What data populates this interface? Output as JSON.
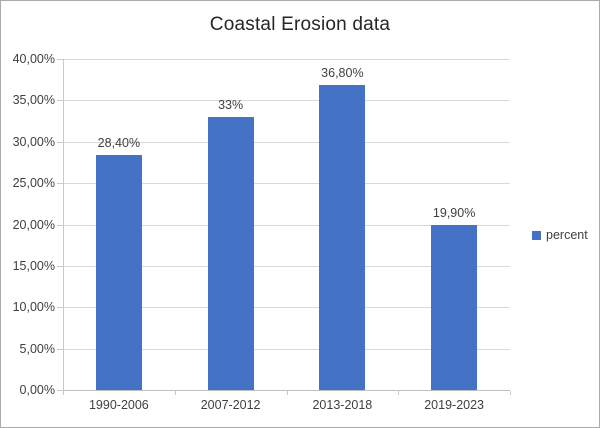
{
  "chart_data": {
    "type": "bar",
    "title": "Coastal Erosion data",
    "categories": [
      "1990-2006",
      "2007-2012",
      "2013-2018",
      "2019-2023"
    ],
    "series": [
      {
        "name": "percent",
        "values": [
          28.4,
          33.0,
          36.8,
          19.9
        ]
      }
    ],
    "data_labels": [
      "28,40%",
      "33%",
      "36,80%",
      "19,90%"
    ],
    "y_tick_labels": [
      "0,00%",
      "5,00%",
      "10,00%",
      "15,00%",
      "20,00%",
      "25,00%",
      "30,00%",
      "35,00%",
      "40,00%"
    ],
    "y_tick_values": [
      0,
      5,
      10,
      15,
      20,
      25,
      30,
      35,
      40
    ],
    "ylim": [
      0,
      40
    ],
    "xlabel": "",
    "ylabel": "",
    "grid": true,
    "legend": {
      "position": "right",
      "label": "percent"
    },
    "colors": {
      "bar": "#4472C4",
      "gridline": "#d9d9d9",
      "axis_line": "#bfbfbf",
      "tick_text": "#404040",
      "title_text": "#262626",
      "background": "#ffffff",
      "border": "#ababab"
    }
  }
}
